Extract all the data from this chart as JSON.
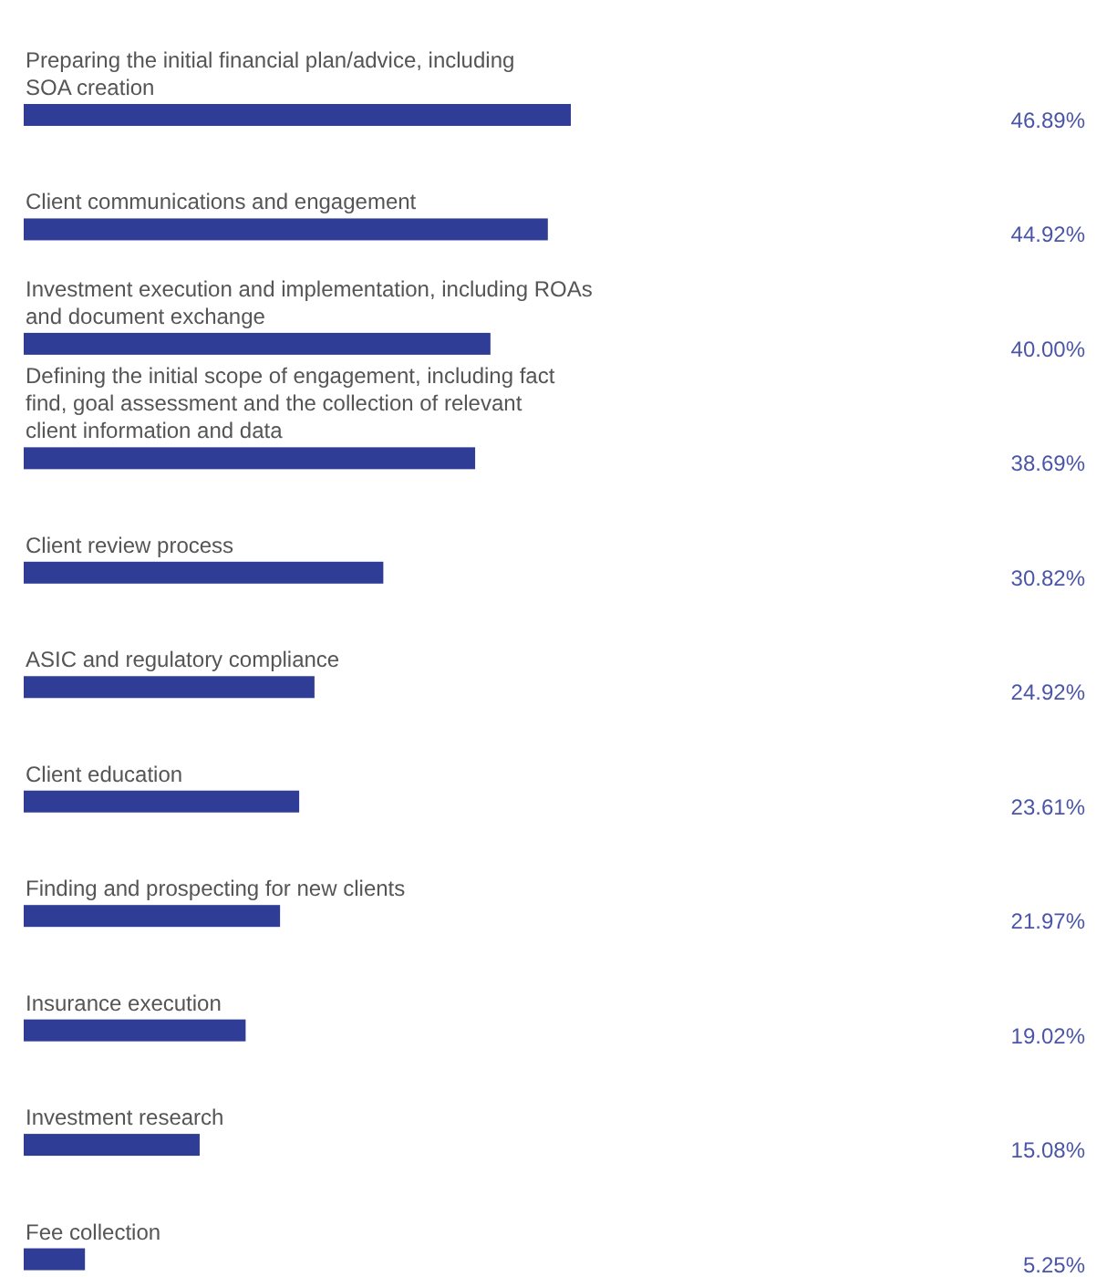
{
  "chart_data": {
    "type": "bar",
    "orientation": "horizontal",
    "categories": [
      "Preparing the initial financial plan/advice, including SOA creation",
      "Client communications and engagement",
      "Investment execution and implementation, including ROAs and document exchange",
      "Defining the initial scope of engagement, including fact find, goal assessment and the collection of relevant client information and data",
      "Client review process",
      "ASIC and regulatory compliance",
      "Client education",
      "Finding and prospecting for new clients",
      "Insurance execution",
      "Investment research",
      "Fee collection"
    ],
    "values": [
      46.89,
      44.92,
      40,
      38.69,
      30.82,
      24.92,
      23.61,
      21.97,
      19.02,
      15.08,
      5.25
    ],
    "value_labels": [
      "46.89%",
      "44.92%",
      "40.00%",
      "38.69%",
      "30.82%",
      "24.92%",
      "23.61%",
      "21.97%",
      "19.02%",
      "15.08%",
      "5.25%"
    ],
    "color": "#2f3d97"
  }
}
